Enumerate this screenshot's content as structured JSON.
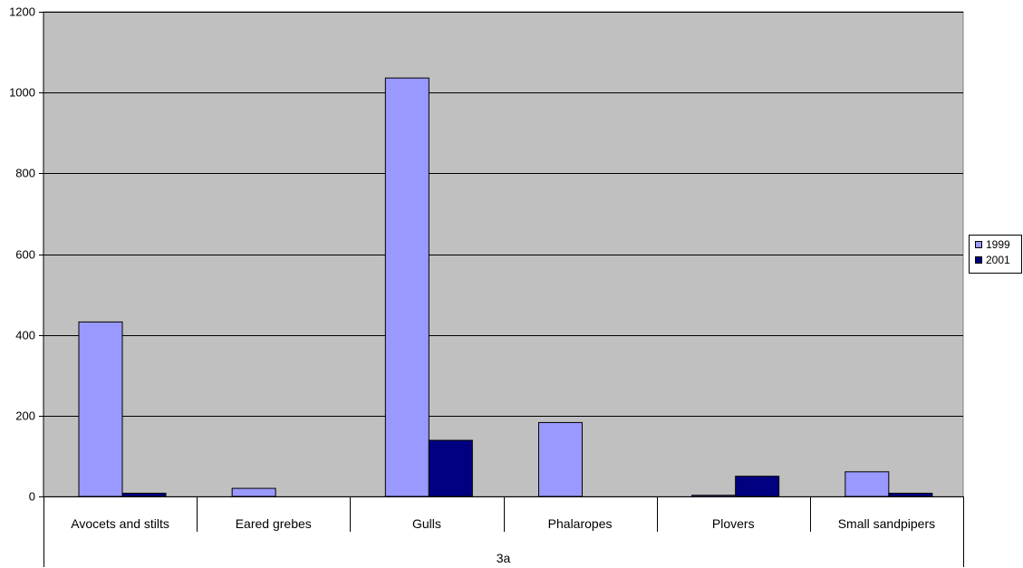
{
  "chart_data": {
    "type": "bar",
    "categories": [
      "Avocets and stilts",
      "Eared grebes",
      "Gulls",
      "Phalaropes",
      "Plovers",
      "Small sandpipers"
    ],
    "group_label": "3a",
    "series": [
      {
        "name": "1999",
        "values": [
          432,
          20,
          1036,
          183,
          3,
          61
        ],
        "color": "#9999ff"
      },
      {
        "name": "2001",
        "values": [
          8,
          0,
          139,
          0,
          50,
          8
        ],
        "color": "#000080"
      }
    ],
    "ylim": [
      0,
      1200
    ],
    "yticks": [
      "0",
      "200",
      "400",
      "600",
      "800",
      "1000",
      "1200"
    ],
    "plot_background": "#c0c0c0",
    "grid": true,
    "legend_position": "right"
  }
}
